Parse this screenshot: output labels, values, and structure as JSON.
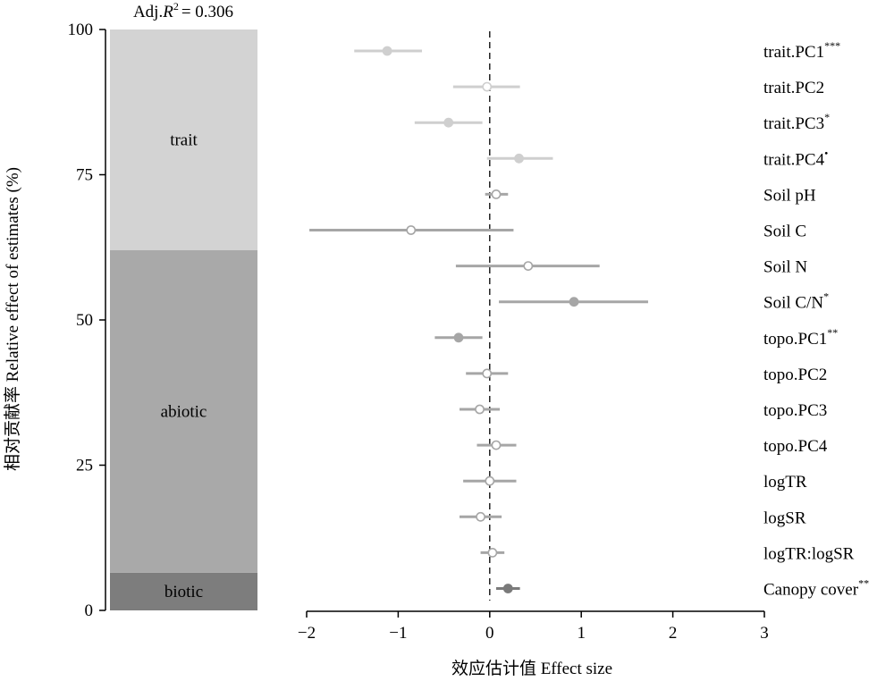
{
  "chart_data": [
    {
      "type": "bar",
      "subtype": "stacked-single-column",
      "annotation_prefix": "Adj.",
      "annotation_symbol": "R",
      "annotation_exponent": "2",
      "annotation_value": "= 0.306",
      "ylabel": "相对贡献率 Relative effect of estimates (%)",
      "ylim": [
        0,
        100
      ],
      "yticks": [
        "0",
        "25",
        "50",
        "75",
        "100"
      ],
      "segments": [
        {
          "name": "biotic",
          "from": 0,
          "to": 6.5,
          "color": "#7d7d7d"
        },
        {
          "name": "abiotic",
          "from": 6.5,
          "to": 62,
          "color": "#a9a9a9"
        },
        {
          "name": "trait",
          "from": 62,
          "to": 100,
          "color": "#d3d3d3"
        }
      ]
    },
    {
      "type": "scatter",
      "subtype": "forest-plot",
      "xlabel": "效应估计值 Effect size",
      "xlim": [
        -2,
        3
      ],
      "xticks": [
        "−2",
        "−1",
        "0",
        "1",
        "2",
        "3"
      ],
      "reference_line": 0,
      "rows": [
        {
          "label": "trait.PC1",
          "sig": "***",
          "est": -1.12,
          "lo": -1.48,
          "hi": -0.74,
          "group": "trait",
          "filled": true
        },
        {
          "label": "trait.PC2",
          "sig": "",
          "est": -0.03,
          "lo": -0.4,
          "hi": 0.33,
          "group": "trait",
          "filled": false
        },
        {
          "label": "trait.PC3",
          "sig": "*",
          "est": -0.45,
          "lo": -0.82,
          "hi": -0.08,
          "group": "trait",
          "filled": true
        },
        {
          "label": "trait.PC4",
          "sig": "•",
          "est": 0.32,
          "lo": -0.03,
          "hi": 0.69,
          "group": "trait",
          "filled": true
        },
        {
          "label": "Soil pH",
          "sig": "",
          "est": 0.07,
          "lo": -0.05,
          "hi": 0.2,
          "group": "abiotic",
          "filled": false
        },
        {
          "label": "Soil C",
          "sig": "",
          "est": -0.86,
          "lo": -1.97,
          "hi": 0.26,
          "group": "abiotic",
          "filled": false
        },
        {
          "label": "Soil N",
          "sig": "",
          "est": 0.42,
          "lo": -0.37,
          "hi": 1.2,
          "group": "abiotic",
          "filled": false
        },
        {
          "label": "Soil C/N",
          "sig": "*",
          "est": 0.92,
          "lo": 0.1,
          "hi": 1.73,
          "group": "abiotic",
          "filled": true
        },
        {
          "label": "topo.PC1",
          "sig": "**",
          "est": -0.34,
          "lo": -0.6,
          "hi": -0.08,
          "group": "abiotic",
          "filled": true
        },
        {
          "label": "topo.PC2",
          "sig": "",
          "est": -0.03,
          "lo": -0.26,
          "hi": 0.2,
          "group": "abiotic",
          "filled": false
        },
        {
          "label": "topo.PC3",
          "sig": "",
          "est": -0.11,
          "lo": -0.33,
          "hi": 0.11,
          "group": "abiotic",
          "filled": false
        },
        {
          "label": "topo.PC4",
          "sig": "",
          "est": 0.07,
          "lo": -0.14,
          "hi": 0.29,
          "group": "abiotic",
          "filled": false
        },
        {
          "label": "logTR",
          "sig": "",
          "est": 0.0,
          "lo": -0.29,
          "hi": 0.29,
          "group": "abiotic",
          "filled": false
        },
        {
          "label": "logSR",
          "sig": "",
          "est": -0.1,
          "lo": -0.33,
          "hi": 0.13,
          "group": "abiotic",
          "filled": false
        },
        {
          "label": "logTR:logSR",
          "sig": "",
          "est": 0.03,
          "lo": -0.1,
          "hi": 0.16,
          "group": "abiotic",
          "filled": false
        },
        {
          "label": "Canopy cover",
          "sig": "**",
          "est": 0.2,
          "lo": 0.07,
          "hi": 0.33,
          "group": "biotic",
          "filled": true
        }
      ],
      "group_colors": {
        "trait": "#cfcfcf",
        "abiotic": "#a6a6a6",
        "biotic": "#7a7a7a"
      }
    }
  ]
}
